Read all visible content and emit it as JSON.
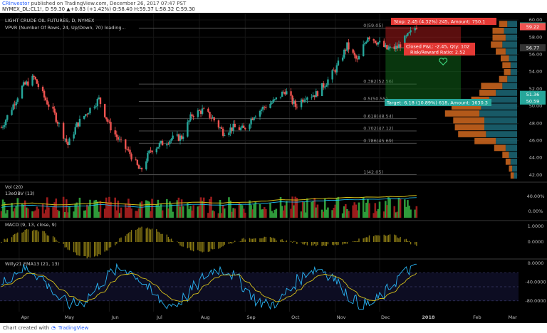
{
  "header": {
    "author": "CRInvestor",
    "published": "published on TradingView.com, December 26, 2017 07:47 PST",
    "ohlc": "NYMEX_DL:CL1!, D  59.30  ▲+0.83 (+1.42%)  O:58.40  H:59.37  L:58.32  C:59.30"
  },
  "footer": {
    "chart_by": "Chart created with",
    "brand": "TradingView"
  },
  "legend": {
    "title": "LIGHT CRUDE OIL FUTURES, D, NYMEX",
    "vpvr": "VPVR (Number Of Rows, 24, Up/Down, 70) loading...",
    "vol": "Vol (20)",
    "obv": "13eOBV (13)",
    "macd": "MACD (9, 13, close, 9)",
    "willy": "Willy21 EMA13 (21, 13)"
  },
  "colors": {
    "up": "#26a69a",
    "down": "#ef5350",
    "vpvr_up": "#1e6f80",
    "vpvr_down": "#d2691e",
    "fib": "#666666",
    "yellow": "#d4c01a",
    "cyan": "#29b6f6"
  },
  "annotations": {
    "stop": "Stop: 2.45 (4.32%) 245, Amount: 750.1",
    "closed_pl": "Closed P&L: -2.45, Qty: 102",
    "rr": "Risk/Reward Ratio: 2.52",
    "target": "Target: 6.18 (10.89%) 618, Amount: 1630.3"
  },
  "chart_data": [
    {
      "type": "candlestick",
      "x_axis": {
        "ticks": [
          "Apr",
          "May",
          "Jun",
          "Jul",
          "Aug",
          "Sep",
          "Oct",
          "Nov",
          "Dec",
          "2018",
          "Feb",
          "Mar"
        ],
        "range": [
          "2017-03-20",
          "2018-03-05"
        ]
      },
      "y_axis": {
        "range": [
          41.5,
          60.5
        ],
        "ticks": [
          "42.00",
          "44.00",
          "46.00",
          "48.00",
          "50.00",
          "52.00",
          "54.00",
          "56.00",
          "58.00",
          "60.00"
        ]
      },
      "price_labels": [
        {
          "value": 59.3,
          "text": "59.30",
          "color": "#26a69a"
        },
        {
          "value": 59.22,
          "text": "59.22",
          "color": "#ef5350"
        },
        {
          "value": 56.77,
          "text": "56.77",
          "color": "#333333"
        },
        {
          "value": 51.36,
          "text": "51.36",
          "color": "#26a69a"
        },
        {
          "value": 50.59,
          "text": "50.59",
          "color": "#26a69a"
        }
      ],
      "fib_levels": [
        {
          "value": 59.05,
          "label": "0(59.05)"
        },
        {
          "value": 52.56,
          "label": "0.382(52.56)"
        },
        {
          "value": 50.55,
          "label": "0.5(50.55)"
        },
        {
          "value": 48.54,
          "label": "0.618(48.54)"
        },
        {
          "value": 47.12,
          "label": "0.702(47.12)"
        },
        {
          "value": 45.69,
          "label": "0.786(45.69)"
        },
        {
          "value": 42.05,
          "label": "1(42.05)"
        }
      ],
      "trade": {
        "entry": 56.77,
        "stop": 59.22,
        "target": 50.59
      },
      "close_path": [
        [
          "2017-03-20",
          47.5
        ],
        [
          "2017-03-27",
          49.8
        ],
        [
          "2017-04-03",
          52.2
        ],
        [
          "2017-04-11",
          53.3
        ],
        [
          "2017-04-18",
          51.0
        ],
        [
          "2017-04-25",
          49.0
        ],
        [
          "2017-05-04",
          45.5
        ],
        [
          "2017-05-10",
          47.8
        ],
        [
          "2017-05-18",
          49.5
        ],
        [
          "2017-05-25",
          50.8
        ],
        [
          "2017-06-01",
          47.8
        ],
        [
          "2017-06-08",
          45.9
        ],
        [
          "2017-06-15",
          44.5
        ],
        [
          "2017-06-22",
          42.4
        ],
        [
          "2017-06-29",
          44.9
        ],
        [
          "2017-07-06",
          45.6
        ],
        [
          "2017-07-13",
          46.2
        ],
        [
          "2017-07-20",
          46.4
        ],
        [
          "2017-07-27",
          49.0
        ],
        [
          "2017-08-03",
          49.5
        ],
        [
          "2017-08-10",
          48.6
        ],
        [
          "2017-08-17",
          47.0
        ],
        [
          "2017-08-24",
          47.5
        ],
        [
          "2017-08-31",
          47.3
        ],
        [
          "2017-09-07",
          49.0
        ],
        [
          "2017-09-14",
          49.9
        ],
        [
          "2017-09-21",
          50.6
        ],
        [
          "2017-09-28",
          51.8
        ],
        [
          "2017-10-05",
          50.0
        ],
        [
          "2017-10-12",
          51.2
        ],
        [
          "2017-10-19",
          51.4
        ],
        [
          "2017-10-26",
          52.8
        ],
        [
          "2017-11-02",
          54.5
        ],
        [
          "2017-11-09",
          57.0
        ],
        [
          "2017-11-16",
          55.2
        ],
        [
          "2017-11-23",
          58.2
        ],
        [
          "2017-11-30",
          57.4
        ],
        [
          "2017-12-06",
          56.6
        ],
        [
          "2017-12-13",
          56.8
        ],
        [
          "2017-12-20",
          58.1
        ],
        [
          "2017-12-26",
          59.3
        ]
      ],
      "vpvr_profile": [
        {
          "price": 59.5,
          "up": 12,
          "down": 10
        },
        {
          "price": 58.7,
          "up": 16,
          "down": 14
        },
        {
          "price": 57.9,
          "up": 14,
          "down": 16
        },
        {
          "price": 57.1,
          "up": 18,
          "down": 14
        },
        {
          "price": 56.3,
          "up": 14,
          "down": 12
        },
        {
          "price": 55.5,
          "up": 10,
          "down": 10
        },
        {
          "price": 54.7,
          "up": 8,
          "down": 10
        },
        {
          "price": 53.9,
          "up": 8,
          "down": 8
        },
        {
          "price": 53.1,
          "up": 12,
          "down": 10
        },
        {
          "price": 52.3,
          "up": 18,
          "down": 26
        },
        {
          "price": 51.5,
          "up": 26,
          "down": 20
        },
        {
          "price": 50.7,
          "up": 34,
          "down": 22
        },
        {
          "price": 49.9,
          "up": 44,
          "down": 36
        },
        {
          "price": 49.1,
          "up": 46,
          "down": 42
        },
        {
          "price": 48.3,
          "up": 40,
          "down": 38
        },
        {
          "price": 47.5,
          "up": 40,
          "down": 36
        },
        {
          "price": 46.7,
          "up": 38,
          "down": 34
        },
        {
          "price": 45.9,
          "up": 26,
          "down": 26
        },
        {
          "price": 45.1,
          "up": 14,
          "down": 14
        },
        {
          "price": 44.3,
          "up": 10,
          "down": 8
        },
        {
          "price": 43.5,
          "up": 8,
          "down": 6
        },
        {
          "price": 42.7,
          "up": 6,
          "down": 4
        },
        {
          "price": 41.9,
          "up": 4,
          "down": 4
        }
      ]
    },
    {
      "type": "bar",
      "name": "Vol",
      "y_axis": {
        "ticks": [
          "40.00%",
          "0.00%"
        ]
      }
    },
    {
      "type": "bar",
      "name": "MACD",
      "y_axis": {
        "range": [
          -1.2,
          1.2
        ],
        "ticks": [
          "1.0000",
          "0.0000"
        ]
      }
    },
    {
      "type": "line",
      "name": "Willy",
      "y_axis": {
        "range": [
          -100,
          0
        ],
        "ticks": [
          "0.0000",
          "-40.0000",
          "-80.0000"
        ]
      }
    }
  ]
}
